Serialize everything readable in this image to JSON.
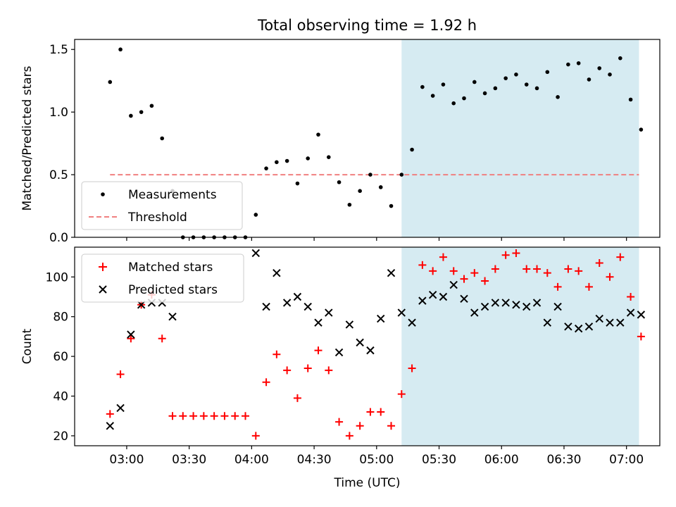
{
  "chart_data": [
    {
      "type": "scatter",
      "title": "Total observing time = 1.92 h",
      "ylabel": "Matched/Predicted stars",
      "ylim": [
        0,
        1.58
      ],
      "yticks": [
        0.0,
        0.5,
        1.0,
        1.5
      ],
      "ytick_labels": [
        "0.0",
        "0.5",
        "1.0",
        "1.5"
      ],
      "xlim": [
        "02:35",
        "07:16"
      ],
      "shaded_span": {
        "from": "05:12",
        "to": "07:06",
        "color": "#add8e6"
      },
      "legend": {
        "placement": "lower-left",
        "entries": [
          "Measurements",
          "Threshold"
        ]
      },
      "series": [
        {
          "name": "Measurements",
          "marker": "dot",
          "color": "#000000",
          "x": [
            "02:52",
            "02:57",
            "03:02",
            "03:07",
            "03:12",
            "03:17",
            "03:22",
            "03:27",
            "03:32",
            "03:37",
            "03:42",
            "03:47",
            "03:52",
            "03:57",
            "04:02",
            "04:07",
            "04:12",
            "04:17",
            "04:22",
            "04:27",
            "04:32",
            "04:37",
            "04:42",
            "04:47",
            "04:52",
            "04:57",
            "05:02",
            "05:07",
            "05:12",
            "05:17",
            "05:22",
            "05:27",
            "05:32",
            "05:37",
            "05:42",
            "05:47",
            "05:52",
            "05:57",
            "06:02",
            "06:07",
            "06:12",
            "06:17",
            "06:22",
            "06:27",
            "06:32",
            "06:37",
            "06:42",
            "06:47",
            "06:52",
            "06:57",
            "07:02",
            "07:07"
          ],
          "y": [
            1.24,
            1.5,
            0.97,
            1.0,
            1.05,
            0.79,
            0.37,
            0.0,
            0.0,
            0.0,
            0.0,
            0.0,
            0.0,
            0.0,
            0.18,
            0.55,
            0.6,
            0.61,
            0.43,
            0.63,
            0.82,
            0.64,
            0.44,
            0.26,
            0.37,
            0.5,
            0.4,
            0.25,
            0.5,
            0.7,
            1.2,
            1.13,
            1.22,
            1.07,
            1.11,
            1.24,
            1.15,
            1.19,
            1.27,
            1.3,
            1.22,
            1.19,
            1.32,
            1.12,
            1.38,
            1.39,
            1.26,
            1.35,
            1.3,
            1.43,
            1.1,
            0.86
          ]
        },
        {
          "name": "Threshold",
          "style": "dashed",
          "color": "#f08080",
          "x": [
            "02:52",
            "07:06"
          ],
          "y": [
            0.5,
            0.5
          ]
        }
      ]
    },
    {
      "type": "scatter",
      "xlabel": "Time (UTC)",
      "ylabel": "Count",
      "ylim": [
        15,
        115
      ],
      "yticks": [
        20,
        40,
        60,
        80,
        100
      ],
      "ytick_labels": [
        "20",
        "40",
        "60",
        "80",
        "100"
      ],
      "xlim": [
        "02:35",
        "07:16"
      ],
      "xticks": [
        "03:00",
        "03:30",
        "04:00",
        "04:30",
        "05:00",
        "05:30",
        "06:00",
        "06:30",
        "07:00"
      ],
      "xtick_labels": [
        "03:00",
        "03:30",
        "04:00",
        "04:30",
        "05:00",
        "05:30",
        "06:00",
        "06:30",
        "07:00"
      ],
      "shaded_span": {
        "from": "05:12",
        "to": "07:06",
        "color": "#add8e6"
      },
      "legend": {
        "placement": "upper-left",
        "entries": [
          "Matched stars",
          "Predicted stars"
        ]
      },
      "series": [
        {
          "name": "Matched stars",
          "marker": "plus",
          "color": "#ff0000",
          "x": [
            "02:52",
            "02:57",
            "03:02",
            "03:07",
            "03:12",
            "03:17",
            "03:22",
            "03:27",
            "03:32",
            "03:37",
            "03:42",
            "03:47",
            "03:52",
            "03:57",
            "04:02",
            "04:07",
            "04:12",
            "04:17",
            "04:22",
            "04:27",
            "04:32",
            "04:37",
            "04:42",
            "04:47",
            "04:52",
            "04:57",
            "05:02",
            "05:07",
            "05:12",
            "05:17",
            "05:22",
            "05:27",
            "05:32",
            "05:37",
            "05:42",
            "05:47",
            "05:52",
            "05:57",
            "06:02",
            "06:07",
            "06:12",
            "06:17",
            "06:22",
            "06:27",
            "06:32",
            "06:37",
            "06:42",
            "06:47",
            "06:52",
            "06:57",
            "07:02",
            "07:07"
          ],
          "y": [
            31,
            51,
            69,
            86,
            91,
            69,
            30,
            30,
            30,
            30,
            30,
            30,
            30,
            30,
            20,
            47,
            61,
            53,
            39,
            54,
            63,
            53,
            27,
            20,
            25,
            32,
            32,
            25,
            41,
            54,
            106,
            103,
            110,
            103,
            99,
            102,
            98,
            104,
            111,
            112,
            104,
            104,
            102,
            95,
            104,
            103,
            95,
            107,
            100,
            110,
            90,
            70
          ]
        },
        {
          "name": "Predicted stars",
          "marker": "x",
          "color": "#000000",
          "x": [
            "02:52",
            "02:57",
            "03:02",
            "03:07",
            "03:12",
            "03:17",
            "03:22",
            "04:02",
            "04:07",
            "04:12",
            "04:17",
            "04:22",
            "04:27",
            "04:32",
            "04:37",
            "04:42",
            "04:47",
            "04:52",
            "04:57",
            "05:02",
            "05:07",
            "05:12",
            "05:17",
            "05:22",
            "05:27",
            "05:32",
            "05:37",
            "05:42",
            "05:47",
            "05:52",
            "05:57",
            "06:02",
            "06:07",
            "06:12",
            "06:17",
            "06:22",
            "06:27",
            "06:32",
            "06:37",
            "06:42",
            "06:47",
            "06:52",
            "06:57",
            "07:02",
            "07:07"
          ],
          "y": [
            25,
            34,
            71,
            86,
            87,
            87,
            80,
            112,
            85,
            102,
            87,
            90,
            85,
            77,
            82,
            62,
            76,
            67,
            63,
            79,
            102,
            82,
            77,
            88,
            91,
            90,
            96,
            89,
            82,
            85,
            87,
            87,
            86,
            85,
            87,
            77,
            85,
            75,
            74,
            75,
            79,
            77,
            77,
            82,
            81
          ]
        }
      ]
    }
  ]
}
